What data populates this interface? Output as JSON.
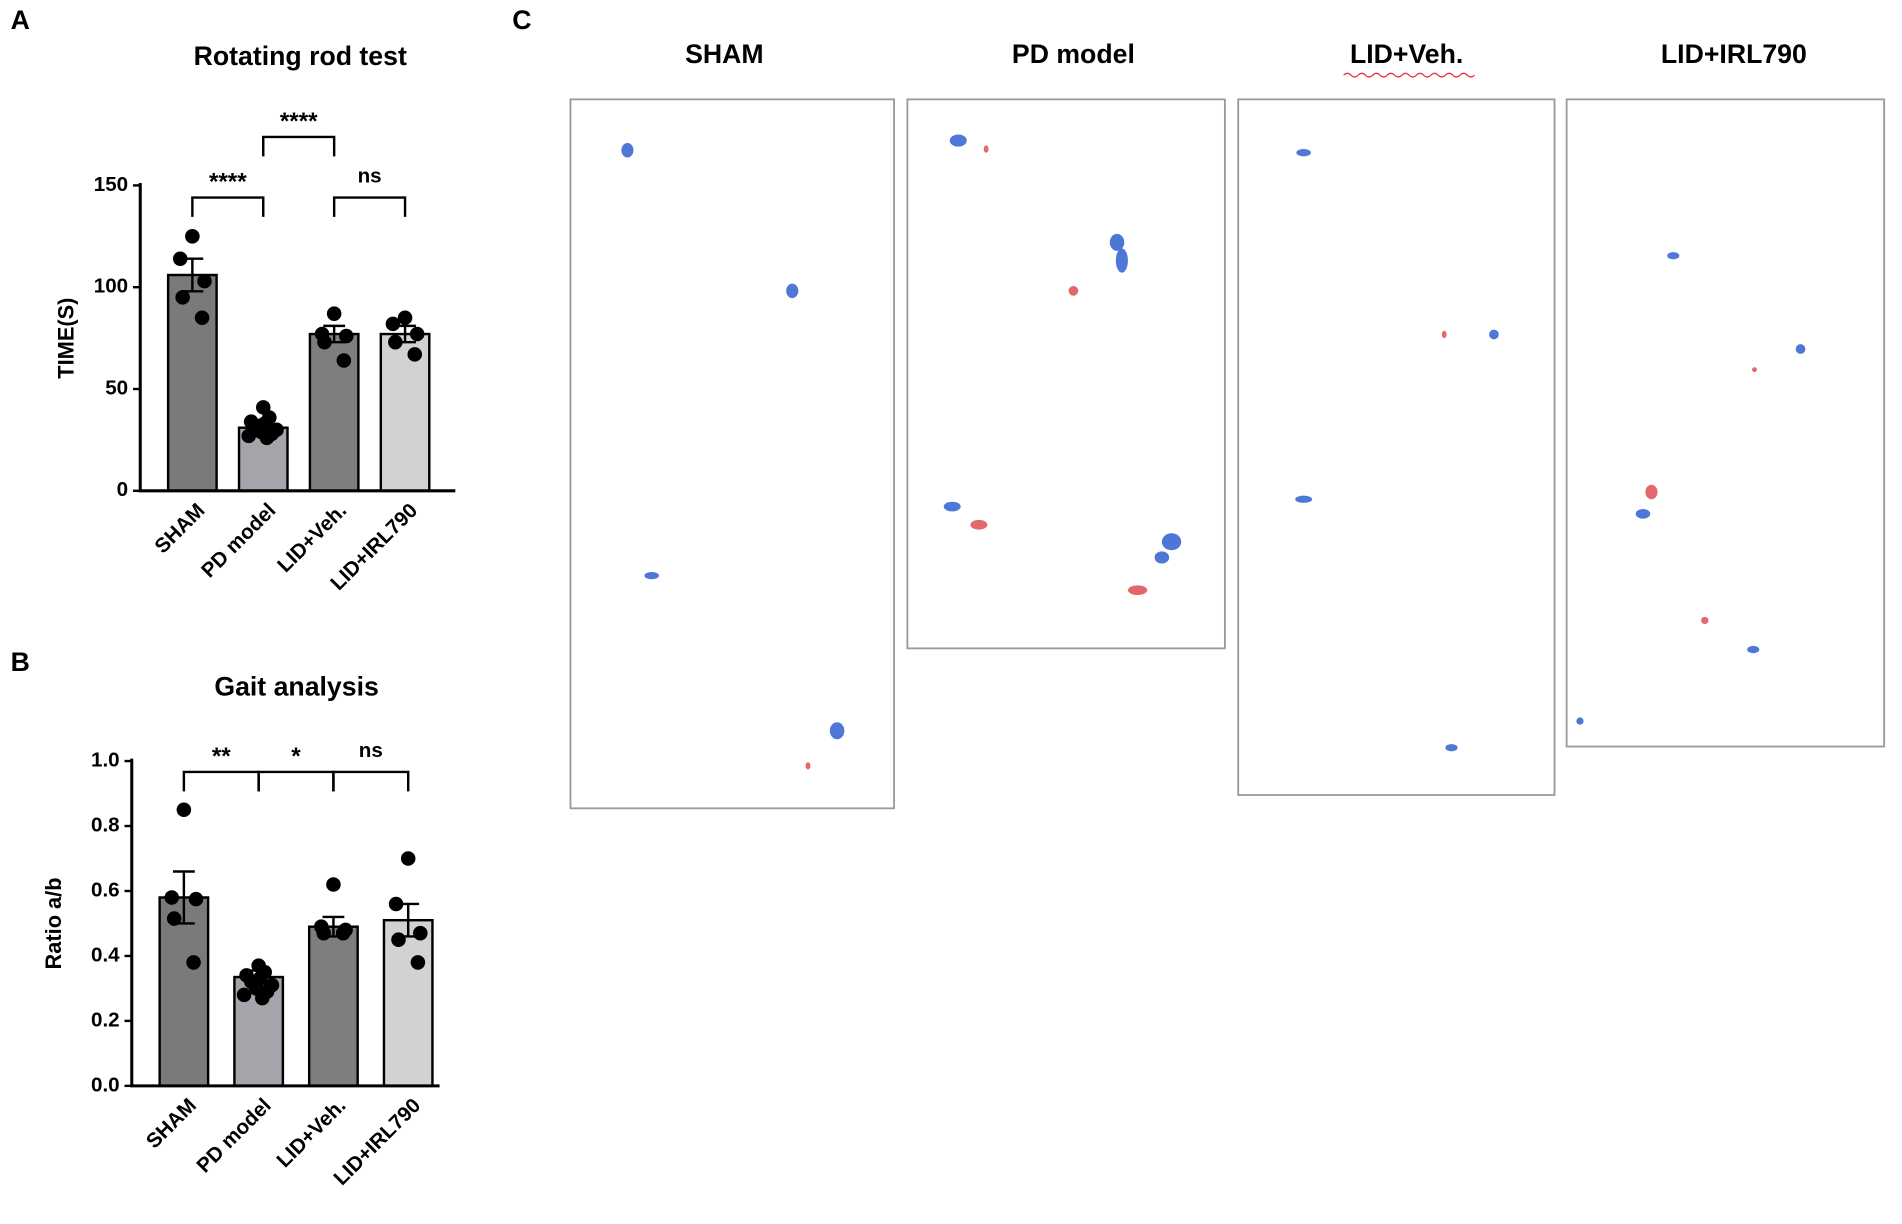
{
  "panel_labels": [
    "A",
    "B",
    "C"
  ],
  "chart_data": [
    {
      "type": "bar",
      "title": "Rotating rod test",
      "y_label": "TIME(S)",
      "categories": [
        "SHAM",
        "PD model",
        "LID+Veh.",
        "LID+IRL790"
      ],
      "values": [
        106,
        31,
        77,
        77
      ],
      "errors": [
        8,
        3,
        4,
        4
      ],
      "points": [
        [
          125,
          114,
          103,
          95,
          85
        ],
        [
          41,
          36,
          34,
          33,
          32,
          30,
          29,
          28,
          27,
          26
        ],
        [
          87,
          77,
          76,
          73,
          64
        ],
        [
          85,
          82,
          77,
          73,
          67
        ]
      ],
      "colors": [
        "#7a7a7a",
        "#a4a4ab",
        "#7e7e7e",
        "#d2d2d2"
      ],
      "ylim": [
        0,
        150
      ],
      "yticks": [
        0,
        50,
        100,
        150
      ],
      "annotations": [
        {
          "text": "****",
          "between": [
            "SHAM",
            "PD model"
          ]
        },
        {
          "text": "****",
          "between": [
            "PD model",
            "LID+Veh."
          ]
        },
        {
          "text": "ns",
          "between": [
            "LID+Veh.",
            "LID+IRL790"
          ]
        }
      ]
    },
    {
      "type": "bar",
      "title": "Gait analysis",
      "y_label": "Ratio a/b",
      "categories": [
        "SHAM",
        "PD model",
        "LID+Veh.",
        "LID+IRL790"
      ],
      "values": [
        0.58,
        0.335,
        0.49,
        0.51
      ],
      "errors": [
        0.08,
        0.02,
        0.03,
        0.05
      ],
      "points": [
        [
          0.85,
          0.58,
          0.575,
          0.515,
          0.38
        ],
        [
          0.37,
          0.35,
          0.34,
          0.33,
          0.32,
          0.31,
          0.3,
          0.29,
          0.28,
          0.27
        ],
        [
          0.62,
          0.49,
          0.48,
          0.47,
          0.47
        ],
        [
          0.7,
          0.56,
          0.47,
          0.45,
          0.38
        ]
      ],
      "colors": [
        "#7a7a7a",
        "#a4a4ab",
        "#7e7e7e",
        "#d2d2d2"
      ],
      "ylim": [
        0,
        1
      ],
      "yticks": [
        {
          "value": 0,
          "label": "0.0"
        },
        0.2,
        0.4,
        0.6,
        0.8,
        {
          "value": 1,
          "label": "1.0"
        }
      ],
      "annotations": [
        {
          "text": "**",
          "between": [
            "SHAM",
            "PD model"
          ]
        },
        {
          "text": "*",
          "between": [
            "PD model",
            "LID+Veh."
          ]
        },
        {
          "text": "ns",
          "between": [
            "LID+Veh.",
            "LID+IRL790"
          ]
        }
      ]
    }
  ],
  "footprints": {
    "titles": [
      "SHAM",
      "PD model",
      "LID+Veh.",
      "LID+IRL790"
    ]
  }
}
